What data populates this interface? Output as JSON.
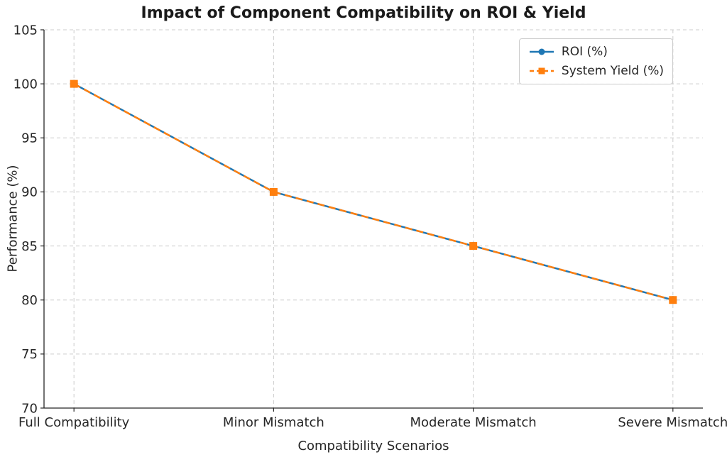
{
  "chart_data": {
    "type": "line",
    "title": "Impact of Component Compatibility on ROI & Yield",
    "xlabel": "Compatibility Scenarios",
    "ylabel": "Performance (%)",
    "categories": [
      "Full Compatibility",
      "Minor Mismatch",
      "Moderate Mismatch",
      "Severe Mismatch"
    ],
    "series": [
      {
        "name": "ROI (%)",
        "values": [
          100,
          90,
          85,
          80
        ],
        "color": "#1f77b4",
        "marker": "circle",
        "line_style": "solid"
      },
      {
        "name": "System Yield (%)",
        "values": [
          100,
          90,
          85,
          80
        ],
        "color": "#ff7f0e",
        "marker": "square",
        "line_style": "dashed"
      }
    ],
    "ylim": [
      70,
      105
    ],
    "yticks": [
      70,
      75,
      80,
      85,
      90,
      95,
      100,
      105
    ],
    "grid": true,
    "grid_color": "#cccccc",
    "axis_color": "#262626",
    "legend_position": "upper right"
  }
}
